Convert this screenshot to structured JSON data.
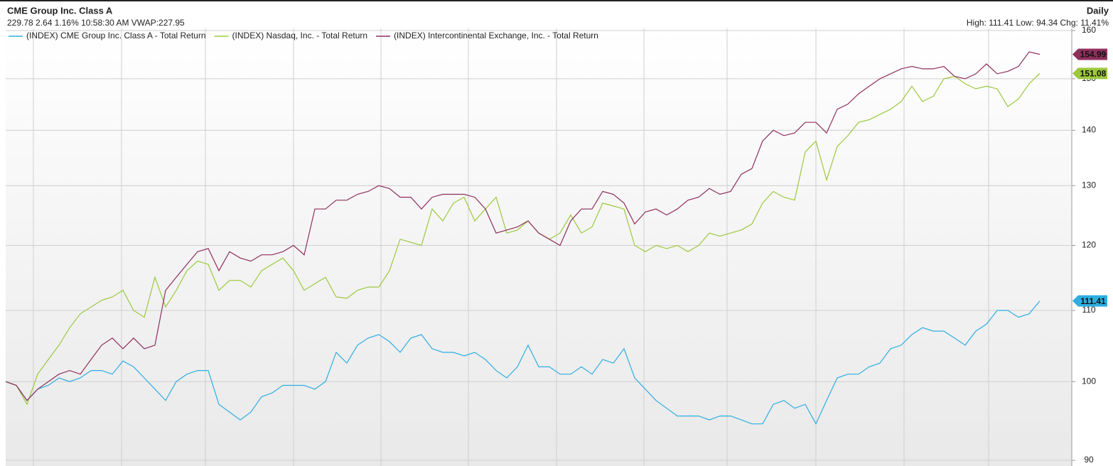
{
  "chart_data": {
    "type": "line",
    "title": "CME Group Inc. Class A",
    "subtitle": "229.78 2.64 1.16% 10:58:30 AM VWAP:227.95",
    "interval": "Daily",
    "summary": "High: 111.41 Low: 94.34 Chg: 11.41%",
    "log_scale": true,
    "grid": true,
    "legend": "top-left",
    "ylim": [
      90,
      160
    ],
    "yticks": [
      90,
      100,
      110,
      120,
      130,
      140,
      150,
      160
    ],
    "series": [
      {
        "name": "(INDEX) CME Group Inc. Class A - Total Return",
        "color": "#2eaee0",
        "values": [
          100,
          99.5,
          97.5,
          99,
          99.5,
          100.5,
          100,
          100.5,
          101.5,
          101.5,
          101,
          102.8,
          102,
          100.5,
          99,
          97.5,
          100,
          101,
          101.5,
          101.5,
          97,
          96,
          95,
          96,
          98,
          98.5,
          99.5,
          99.5,
          99.5,
          99,
          100,
          104,
          102.5,
          105,
          106,
          106.5,
          105.5,
          104,
          106,
          106.5,
          104.5,
          104,
          104,
          103.5,
          104,
          103,
          101.5,
          100.5,
          102,
          105,
          102,
          102,
          101,
          101,
          102,
          101,
          103,
          102.5,
          104.5,
          100.5,
          99,
          97.5,
          96.5,
          95.5,
          95.5,
          95.5,
          95,
          95.5,
          95.5,
          95,
          94.5,
          94.5,
          97,
          97.5,
          96.5,
          97,
          94.5,
          97.5,
          100.5,
          101,
          101,
          102,
          102.5,
          104.5,
          105,
          106.5,
          107.5,
          107,
          107,
          106,
          105,
          107,
          108,
          110,
          110,
          109,
          109.5,
          111.41
        ]
      },
      {
        "name": "(INDEX) Nasdaq, Inc. - Total Return",
        "color": "#9cc83e",
        "values": [
          100,
          99.5,
          97,
          101,
          103,
          105,
          107.5,
          109.5,
          110.5,
          111.5,
          112,
          113,
          110,
          109,
          115,
          110.5,
          113,
          116,
          117.5,
          117,
          113,
          114.5,
          114.5,
          113.5,
          116,
          117,
          118,
          116,
          113,
          114,
          115,
          112,
          111.8,
          113,
          113.5,
          113.5,
          116,
          121,
          120.5,
          120,
          126,
          124,
          127,
          128,
          124,
          126,
          128,
          122,
          122.5,
          124,
          122,
          121,
          122,
          125,
          122,
          123,
          127,
          126.5,
          126,
          120,
          119,
          120,
          119.5,
          120,
          119,
          120,
          122,
          121.5,
          122,
          122.5,
          123.5,
          127,
          129,
          128,
          127.5,
          136,
          138,
          131,
          137,
          139,
          141.5,
          142,
          143,
          144,
          145.5,
          148.5,
          145.5,
          146.5,
          150,
          150.5,
          149,
          148,
          148.5,
          148,
          144.5,
          146,
          149,
          151.08
        ]
      },
      {
        "name": "(INDEX) Intercontinental Exchange, Inc. - Total Return",
        "color": "#8e2f5c",
        "values": [
          100,
          99.5,
          97.5,
          99,
          100,
          101,
          101.5,
          101,
          103,
          105,
          106,
          104.5,
          106,
          104.5,
          105,
          113,
          115,
          117,
          119,
          119.5,
          116,
          119,
          118,
          117.5,
          118.5,
          118.5,
          119,
          120,
          118.5,
          126,
          126,
          127.5,
          127.5,
          128.5,
          129,
          130,
          129.5,
          128,
          128,
          126,
          128,
          128.5,
          128.5,
          128.5,
          128,
          126,
          122,
          122.5,
          123,
          124,
          122,
          121,
          120,
          124,
          126,
          126,
          129,
          128.5,
          127,
          123.5,
          125.5,
          126,
          125,
          126,
          127.5,
          128,
          129.5,
          128.5,
          129,
          132,
          133,
          138,
          140,
          139,
          139.5,
          141.5,
          141.5,
          139.5,
          144,
          145,
          147,
          148.5,
          150,
          151,
          152,
          152.5,
          152,
          152,
          152.5,
          150.5,
          150,
          151,
          153,
          151,
          151.5,
          152.5,
          155.5,
          154.99
        ]
      }
    ]
  }
}
